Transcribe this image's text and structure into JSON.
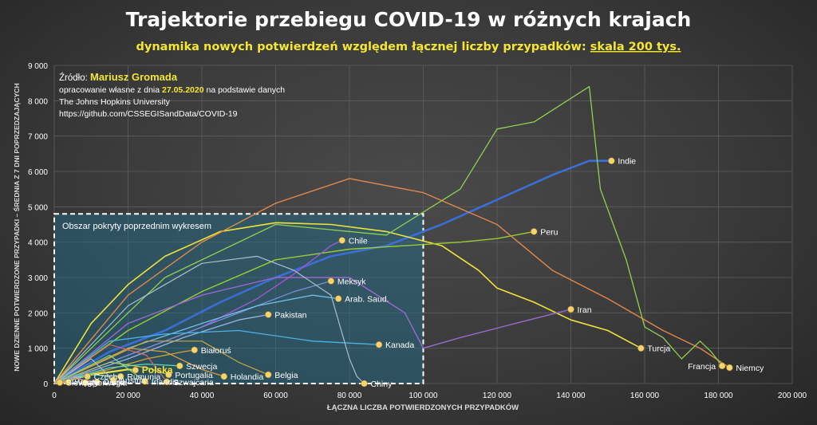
{
  "title": "Trajektorie przebiegu COVID-19 w różnych krajach",
  "subtitle_main": "dynamika nowych potwierdzeń względem łącznej liczby przypadków:",
  "subtitle_scale": "skala 200 tys.",
  "source": {
    "label": "Źródło:",
    "author": "Mariusz Gromada",
    "line2_pre": "opracowanie własne z dnia",
    "date": "27.05.2020",
    "line2_post": "na podstawie danych",
    "line3": "The Johns Hopkins University",
    "line4": "https://github.com/CSSEGISandData/COVID-19"
  },
  "box_label": "Obszar pokryty poprzednim wykresem",
  "colors": {
    "accent": "#f5e62e",
    "text": "#ffffff",
    "grid": "#5e5e5e",
    "box_fill": "#1f6e8f",
    "point": "#f7d46b"
  },
  "chart_data": {
    "type": "line",
    "xlabel": "ŁĄCZNA LICZBA POTWIERDZONYCH PRZYPADKÓW",
    "ylabel": "NOWE DZIENNE POTWIERDZONE PRZYPADKI – ŚREDNIA Z 7 DNI POPRZEDZAJĄCYCH",
    "xlim": [
      0,
      200000
    ],
    "ylim": [
      0,
      9000
    ],
    "x_ticks": [
      "0",
      "20 000",
      "40 000",
      "60 000",
      "80 000",
      "100 000",
      "120 000",
      "140 000",
      "160 000",
      "180 000",
      "200 000"
    ],
    "y_ticks": [
      "0",
      "1 000",
      "2 000",
      "3 000",
      "4 000",
      "5 000",
      "6 000",
      "7 000",
      "8 000",
      "9 000"
    ],
    "grid": true,
    "previous_area": {
      "x": [
        0,
        100000
      ],
      "y": [
        0,
        4800
      ]
    },
    "series": [
      {
        "name": "Indie",
        "color": "#3a6fd8",
        "width": 2.6,
        "label_side": "right",
        "points": [
          [
            0,
            0
          ],
          [
            15000,
            900
          ],
          [
            30000,
            1500
          ],
          [
            45000,
            2300
          ],
          [
            60000,
            3000
          ],
          [
            75000,
            3600
          ],
          [
            90000,
            3900
          ],
          [
            105000,
            4500
          ],
          [
            120000,
            5200
          ],
          [
            135000,
            5900
          ],
          [
            145000,
            6300
          ],
          [
            151000,
            6300
          ]
        ]
      },
      {
        "name": "Turcja",
        "color": "#f0e23a",
        "width": 1.6,
        "label_side": "right",
        "points": [
          [
            0,
            0
          ],
          [
            10000,
            1700
          ],
          [
            20000,
            2800
          ],
          [
            30000,
            3600
          ],
          [
            45000,
            4300
          ],
          [
            60000,
            4550
          ],
          [
            75000,
            4500
          ],
          [
            90000,
            4300
          ],
          [
            105000,
            3900
          ],
          [
            115000,
            3200
          ],
          [
            120000,
            2700
          ],
          [
            130000,
            2300
          ],
          [
            140000,
            1800
          ],
          [
            150000,
            1500
          ],
          [
            159000,
            1000
          ]
        ]
      },
      {
        "name": "Peru",
        "color": "#9acd32",
        "width": 1.4,
        "label_side": "right",
        "points": [
          [
            0,
            0
          ],
          [
            20000,
            1500
          ],
          [
            40000,
            2600
          ],
          [
            60000,
            3500
          ],
          [
            80000,
            3800
          ],
          [
            95000,
            3900
          ],
          [
            110000,
            4000
          ],
          [
            120000,
            4100
          ],
          [
            130000,
            4300
          ]
        ]
      },
      {
        "name": "Iran",
        "color": "#9a6ad0",
        "width": 1.4,
        "label_side": "right",
        "points": [
          [
            0,
            0
          ],
          [
            20000,
            1700
          ],
          [
            40000,
            2500
          ],
          [
            60000,
            3000
          ],
          [
            80000,
            3000
          ],
          [
            95000,
            2000
          ],
          [
            100000,
            1000
          ],
          [
            110000,
            1300
          ],
          [
            125000,
            1700
          ],
          [
            140000,
            2100
          ]
        ]
      },
      {
        "name": "Niemcy",
        "color": "#e0884a",
        "width": 1.4,
        "label_side": "right",
        "points": [
          [
            0,
            0
          ],
          [
            20000,
            2500
          ],
          [
            40000,
            4000
          ],
          [
            60000,
            5100
          ],
          [
            80000,
            5800
          ],
          [
            100000,
            5400
          ],
          [
            120000,
            4500
          ],
          [
            135000,
            3200
          ],
          [
            150000,
            2400
          ],
          [
            165000,
            1500
          ],
          [
            175000,
            1000
          ],
          [
            183000,
            450
          ]
        ]
      },
      {
        "name": "Francja",
        "color": "#8fd14f",
        "width": 1.3,
        "label_side": "left",
        "points": [
          [
            0,
            0
          ],
          [
            30000,
            3000
          ],
          [
            60000,
            4500
          ],
          [
            90000,
            4200
          ],
          [
            110000,
            5500
          ],
          [
            120000,
            7200
          ],
          [
            130000,
            7400
          ],
          [
            145000,
            8400
          ],
          [
            148000,
            5500
          ],
          [
            155000,
            3500
          ],
          [
            160000,
            1600
          ],
          [
            165000,
            1300
          ],
          [
            170000,
            700
          ],
          [
            175000,
            1200
          ],
          [
            178000,
            900
          ],
          [
            181000,
            500
          ]
        ]
      },
      {
        "name": "Chile",
        "color": "#9b59d6",
        "width": 1.4,
        "label_side": "right",
        "points": [
          [
            0,
            0
          ],
          [
            20000,
            800
          ],
          [
            40000,
            1600
          ],
          [
            55000,
            2400
          ],
          [
            65000,
            3100
          ],
          [
            75000,
            3900
          ],
          [
            78000,
            4050
          ]
        ]
      },
      {
        "name": "Meksyk",
        "color": "#7b8fd8",
        "width": 1.3,
        "label_side": "right",
        "points": [
          [
            0,
            0
          ],
          [
            20000,
            800
          ],
          [
            40000,
            1600
          ],
          [
            55000,
            2200
          ],
          [
            65000,
            2600
          ],
          [
            75000,
            2900
          ]
        ]
      },
      {
        "name": "Arab. Saud.",
        "color": "#6fc0e8",
        "width": 1.3,
        "label_side": "right",
        "points": [
          [
            0,
            0
          ],
          [
            20000,
            1000
          ],
          [
            40000,
            1700
          ],
          [
            55000,
            2200
          ],
          [
            70000,
            2500
          ],
          [
            77000,
            2400
          ]
        ]
      },
      {
        "name": "Pakistan",
        "color": "#9ab5e6",
        "width": 1.3,
        "label_side": "right",
        "points": [
          [
            0,
            0
          ],
          [
            20000,
            700
          ],
          [
            35000,
            1300
          ],
          [
            50000,
            1800
          ],
          [
            58000,
            1950
          ]
        ]
      },
      {
        "name": "Kanada",
        "color": "#4cb3e8",
        "width": 1.3,
        "label_side": "right",
        "points": [
          [
            0,
            0
          ],
          [
            15000,
            1200
          ],
          [
            30000,
            1400
          ],
          [
            50000,
            1500
          ],
          [
            70000,
            1200
          ],
          [
            88000,
            1100
          ]
        ]
      },
      {
        "name": "Białoruś",
        "color": "#d6a03a",
        "width": 1.3,
        "label_side": "right",
        "points": [
          [
            0,
            0
          ],
          [
            15000,
            400
          ],
          [
            25000,
            700
          ],
          [
            35000,
            900
          ],
          [
            38000,
            950
          ]
        ]
      },
      {
        "name": "Szwecja",
        "color": "#5ad6b8",
        "width": 1.3,
        "label_side": "right",
        "points": [
          [
            0,
            0
          ],
          [
            15000,
            450
          ],
          [
            25000,
            550
          ],
          [
            34000,
            500
          ]
        ]
      },
      {
        "name": "Portugalia",
        "color": "#b8c86a",
        "width": 1.2,
        "label_side": "right",
        "points": [
          [
            0,
            0
          ],
          [
            15000,
            600
          ],
          [
            25000,
            450
          ],
          [
            31000,
            250
          ]
        ]
      },
      {
        "name": "Holandia",
        "color": "#e0a040",
        "width": 1.2,
        "label_side": "right",
        "points": [
          [
            0,
            0
          ],
          [
            20000,
            1000
          ],
          [
            30000,
            900
          ],
          [
            40000,
            400
          ],
          [
            46000,
            200
          ]
        ]
      },
      {
        "name": "Belgia",
        "color": "#c8a840",
        "width": 1.2,
        "label_side": "right",
        "points": [
          [
            0,
            0
          ],
          [
            25000,
            1200
          ],
          [
            40000,
            1200
          ],
          [
            50000,
            600
          ],
          [
            58000,
            250
          ]
        ]
      },
      {
        "name": "Chiny",
        "color": "#aac0c8",
        "width": 1.2,
        "label_side": "right",
        "points": [
          [
            0,
            0
          ],
          [
            20000,
            2200
          ],
          [
            40000,
            3400
          ],
          [
            55000,
            3600
          ],
          [
            65000,
            3200
          ],
          [
            75000,
            2500
          ],
          [
            80000,
            700
          ],
          [
            82000,
            200
          ],
          [
            84000,
            0
          ]
        ]
      },
      {
        "name": "Polska",
        "color": "#f0e23a",
        "width": 2.2,
        "label_side": "right",
        "points": [
          [
            0,
            0
          ],
          [
            10000,
            250
          ],
          [
            20000,
            400
          ],
          [
            22000,
            380
          ]
        ]
      },
      {
        "name": "Rumunia",
        "color": "#7fc8a0",
        "width": 1.2,
        "label_side": "right",
        "points": [
          [
            0,
            0
          ],
          [
            10000,
            250
          ],
          [
            18000,
            200
          ]
        ]
      },
      {
        "name": "Czechy",
        "color": "#5aa8d8",
        "width": 1.2,
        "label_side": "right",
        "points": [
          [
            0,
            0
          ],
          [
            6000,
            250
          ],
          [
            9000,
            200
          ]
        ]
      },
      {
        "name": "Szwajcaria",
        "color": "#d86a6a",
        "width": 1.2,
        "label_side": "right",
        "points": [
          [
            0,
            0
          ],
          [
            15000,
            1100
          ],
          [
            25000,
            800
          ],
          [
            30500,
            50
          ]
        ]
      },
      {
        "name": "Austria",
        "color": "#c0c0c0",
        "width": 1.1,
        "label_side": "right",
        "points": [
          [
            0,
            0
          ],
          [
            10000,
            700
          ],
          [
            16000,
            100
          ]
        ]
      },
      {
        "name": "Norwegia",
        "color": "#a0a0e0",
        "width": 1.1,
        "label_side": "right",
        "points": [
          [
            0,
            0
          ],
          [
            6000,
            200
          ],
          [
            8400,
            30
          ]
        ]
      },
      {
        "name": "Dania",
        "color": "#e08080",
        "width": 1.1,
        "label_side": "right",
        "points": [
          [
            0,
            0
          ],
          [
            5000,
            150
          ],
          [
            11600,
            40
          ]
        ]
      },
      {
        "name": "Irlandia",
        "color": "#80e080",
        "width": 1.1,
        "label_side": "right",
        "points": [
          [
            0,
            0
          ],
          [
            15000,
            800
          ],
          [
            24600,
            60
          ]
        ]
      },
      {
        "name": "Słowacja",
        "color": "#c0a0e0",
        "width": 1.1,
        "label_side": "right",
        "points": [
          [
            0,
            0
          ],
          [
            1500,
            30
          ]
        ]
      },
      {
        "name": "Węgry",
        "color": "#e0c080",
        "width": 1.1,
        "label_side": "right",
        "points": [
          [
            0,
            0
          ],
          [
            3800,
            40
          ]
        ]
      }
    ]
  }
}
